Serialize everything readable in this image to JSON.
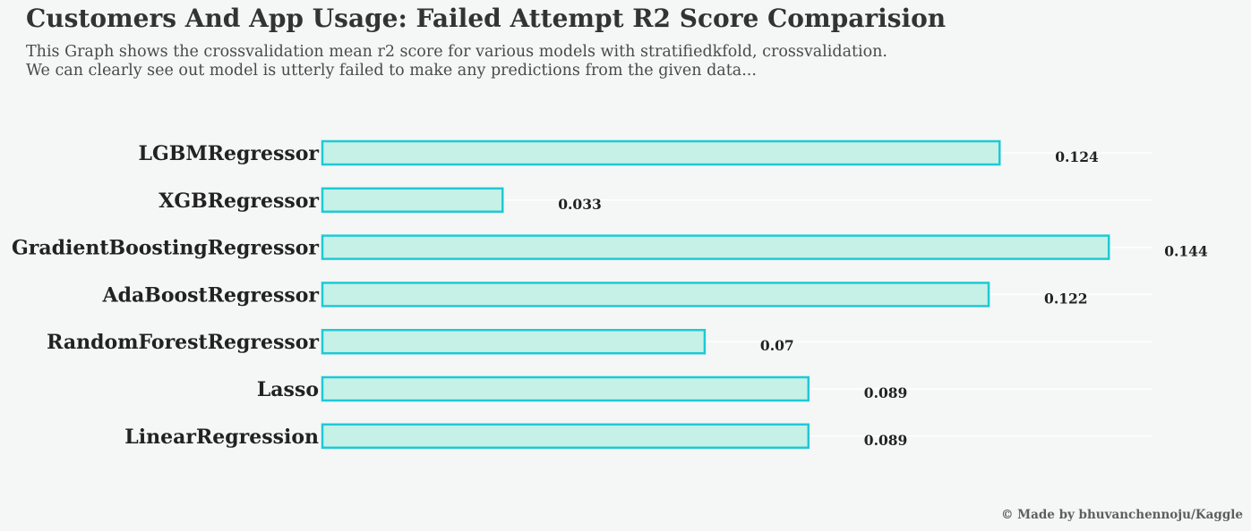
{
  "header": {
    "title": "Customers And App Usage: Failed Attempt R2 Score Comparision",
    "subtitle_line1": "This Graph shows the crossvalidation mean r2 score for various models with stratifiedkfold, crossvalidation.",
    "subtitle_line2": "We can clearly see out model is utterly failed to make any predictions from the given data..."
  },
  "footer": {
    "credit": "© Made by bhuvanchennoju/Kaggle"
  },
  "colors": {
    "background": "#f5f6f6",
    "bar_fill": "#c6f1e7",
    "bar_edge": "#1ec9d6",
    "gridline": "#ffffff",
    "label_text": "#222222"
  },
  "chart_data": {
    "type": "bar",
    "orientation": "horizontal",
    "categories": [
      "LGBMRegressor",
      "XGBRegressor",
      "GradientBoostingRegressor",
      "AdaBoostRegressor",
      "RandomForestRegressor",
      "Lasso",
      "LinearRegression"
    ],
    "values": [
      0.124,
      0.033,
      0.144,
      0.122,
      0.07,
      0.089,
      0.089
    ],
    "value_labels": [
      "0.124",
      "0.033",
      "0.144",
      "0.122",
      "0.07",
      "0.089",
      "0.089"
    ],
    "xlim": [
      0,
      0.152
    ],
    "grid": true,
    "axes_visible": false
  }
}
